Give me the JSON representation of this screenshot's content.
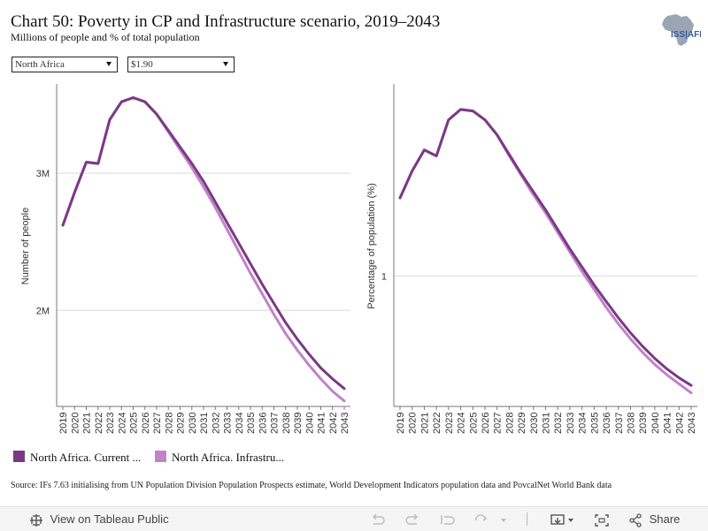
{
  "header": {
    "title": "Chart 50: Poverty in CP and Infrastructure scenario, 2019–2043",
    "subtitle": "Millions of people and % of total population",
    "logo_text": "ISS|AFI"
  },
  "filters": {
    "region": "North Africa",
    "poverty_line": "$1.90"
  },
  "legend": {
    "current_path": "North Africa. Current ...",
    "infrastructure": "North Africa. Infrastru..."
  },
  "colors": {
    "current_path": "#7b3a84",
    "infrastructure": "#c282c9",
    "grid": "#d9d9d9",
    "axis": "#777777"
  },
  "source": "Source: IFs 7.63 initialising from UN Population Division Population Prospects estimate, World Development Indicators population data and PovcalNet World Bank data",
  "toolbar": {
    "view_label": "View on Tableau Public",
    "share_label": "Share"
  },
  "chart_data": [
    {
      "type": "line",
      "ylabel": "Number of people",
      "yticks": [
        2000000,
        3000000
      ],
      "ytick_labels": [
        "2M",
        "3M"
      ],
      "ylim": [
        1300000,
        3650000
      ],
      "grid": true,
      "x": [
        2019,
        2020,
        2021,
        2022,
        2023,
        2024,
        2025,
        2026,
        2027,
        2028,
        2029,
        2030,
        2031,
        2032,
        2033,
        2034,
        2035,
        2036,
        2037,
        2038,
        2039,
        2040,
        2041,
        2042,
        2043
      ],
      "series": [
        {
          "name": "North Africa. Current ...",
          "values": [
            2620000,
            2860000,
            3080000,
            3070000,
            3390000,
            3520000,
            3550000,
            3520000,
            3430000,
            3310000,
            3190000,
            3070000,
            2940000,
            2790000,
            2640000,
            2490000,
            2340000,
            2190000,
            2050000,
            1910000,
            1790000,
            1680000,
            1580000,
            1500000,
            1430000
          ]
        },
        {
          "name": "North Africa. Infrastru...",
          "values": [
            2620000,
            2860000,
            3080000,
            3070000,
            3390000,
            3520000,
            3550000,
            3520000,
            3430000,
            3300000,
            3170000,
            3040000,
            2900000,
            2750000,
            2590000,
            2430000,
            2270000,
            2120000,
            1970000,
            1830000,
            1710000,
            1600000,
            1500000,
            1410000,
            1340000
          ]
        }
      ]
    },
    {
      "type": "line",
      "ylabel": "Percentage of population (%)",
      "yticks": [
        1
      ],
      "ytick_labels": [
        "1"
      ],
      "ylim": [
        0.565,
        1.64
      ],
      "grid": true,
      "x": [
        2019,
        2020,
        2021,
        2022,
        2023,
        2024,
        2025,
        2026,
        2027,
        2028,
        2029,
        2030,
        2031,
        2032,
        2033,
        2034,
        2035,
        2036,
        2037,
        2038,
        2039,
        2040,
        2041,
        2042,
        2043
      ],
      "series": [
        {
          "name": "North Africa. Current ...",
          "values": [
            1.26,
            1.35,
            1.42,
            1.4,
            1.52,
            1.555,
            1.55,
            1.52,
            1.47,
            1.405,
            1.34,
            1.28,
            1.22,
            1.155,
            1.09,
            1.03,
            0.97,
            0.915,
            0.86,
            0.81,
            0.765,
            0.725,
            0.69,
            0.66,
            0.635
          ]
        },
        {
          "name": "North Africa. Infrastru...",
          "values": [
            1.26,
            1.35,
            1.42,
            1.4,
            1.52,
            1.555,
            1.55,
            1.52,
            1.47,
            1.4,
            1.335,
            1.27,
            1.21,
            1.145,
            1.08,
            1.015,
            0.955,
            0.895,
            0.84,
            0.79,
            0.745,
            0.705,
            0.67,
            0.64,
            0.61
          ]
        }
      ]
    }
  ]
}
